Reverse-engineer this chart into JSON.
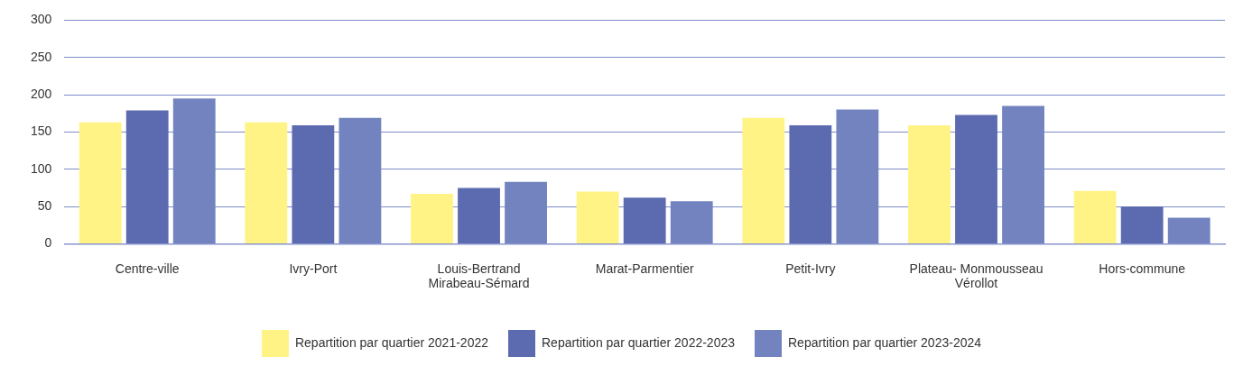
{
  "chart_data": {
    "type": "bar",
    "categories": [
      "Centre-ville",
      "Ivry-Port",
      "Louis-Bertrand Mirabeau-Sémard",
      "Marat-Parmentier",
      "Petit-Ivry",
      "Plateau- Monmousseau Vérollot",
      "Hors-commune"
    ],
    "series": [
      {
        "name": "Repartition par quartier 2021-2022",
        "color": "#fff385",
        "values": [
          163,
          163,
          67,
          70,
          169,
          159,
          71
        ]
      },
      {
        "name": "Repartition par quartier 2022-2023",
        "color": "#5c6bb0",
        "values": [
          179,
          159,
          75,
          62,
          159,
          173,
          50
        ]
      },
      {
        "name": "Repartition par quartier 2023-2024",
        "color": "#7283c0",
        "values": [
          195,
          169,
          83,
          57,
          180,
          185,
          35
        ]
      }
    ],
    "ylim": [
      0,
      300
    ],
    "yticks": [
      0,
      50,
      100,
      150,
      200,
      250,
      300
    ],
    "grid": "y",
    "legend": "bottom"
  }
}
